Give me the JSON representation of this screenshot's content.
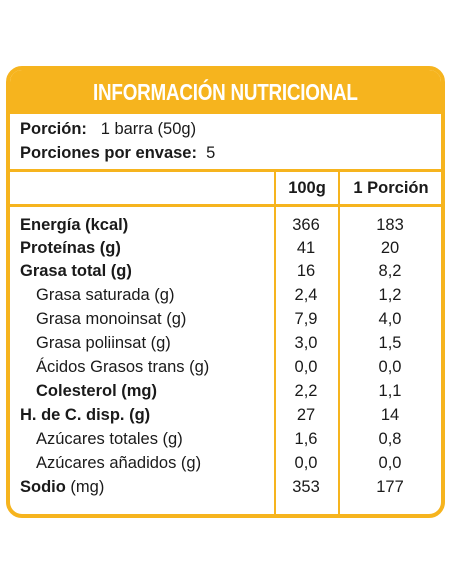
{
  "title": "INFORMACIÓN NUTRICIONAL",
  "portion": {
    "label": "Porción:",
    "value": "1 barra (50g)"
  },
  "servings": {
    "label": "Porciones por envase:",
    "value": "5"
  },
  "columns": [
    "100g",
    "1 Porción"
  ],
  "rows": [
    {
      "label": "Energía (kcal)",
      "v100": "366",
      "vportion": "183"
    },
    {
      "label": "Proteínas (g)",
      "v100": "41",
      "vportion": "20"
    },
    {
      "label": "Grasa total (g)",
      "v100": "16",
      "vportion": "8,2"
    },
    {
      "label": "Grasa saturada (g)",
      "v100": "2,4",
      "vportion": "1,2"
    },
    {
      "label": "Grasa monoinsat (g)",
      "v100": "7,9",
      "vportion": "4,0"
    },
    {
      "label": "Grasa poliinsat (g)",
      "v100": "3,0",
      "vportion": "1,5"
    },
    {
      "label": "Ácidos Grasos trans (g)",
      "v100": "0,0",
      "vportion": "0,0"
    },
    {
      "label": "Colesterol (mg)",
      "v100": "2,2",
      "vportion": "1,1"
    },
    {
      "label": "H. de C. disp. (g)",
      "v100": "27",
      "vportion": "14"
    },
    {
      "label": "Azúcares totales (g)",
      "v100": "1,6",
      "vportion": "0,8"
    },
    {
      "label": "Azúcares añadidos (g)",
      "v100": "0,0",
      "vportion": "0,0"
    },
    {
      "label_bold": "Sodio",
      "label_rest": " (mg)",
      "v100": "353",
      "vportion": "177"
    }
  ],
  "colors": {
    "accent": "#f6b41e",
    "text": "#1a1a1a"
  }
}
